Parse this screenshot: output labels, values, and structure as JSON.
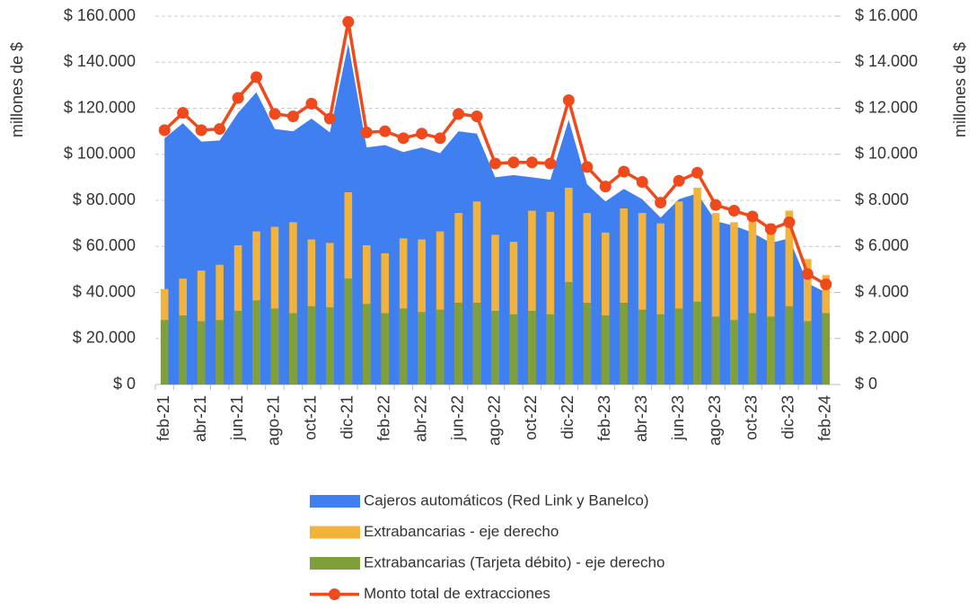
{
  "chart_data": {
    "type": "combo",
    "categories": [
      "feb-21",
      null,
      "abr-21",
      null,
      "jun-21",
      null,
      "ago-21",
      null,
      "oct-21",
      null,
      "dic-21",
      null,
      "feb-22",
      null,
      "abr-22",
      null,
      "jun-22",
      null,
      "ago-22",
      null,
      "oct-22",
      null,
      "dic-22",
      null,
      "feb-23",
      null,
      "abr-23",
      null,
      "jun-23",
      null,
      "ago-23",
      null,
      "oct-23",
      null,
      "dic-23",
      null,
      "feb-24"
    ],
    "y_label": "millones de $",
    "y2_label": "millones de $",
    "ylim": [
      0,
      160000
    ],
    "yticks": [
      {
        "value": 0,
        "label": "$ 0"
      },
      {
        "value": 20000,
        "label": "$ 20.000"
      },
      {
        "value": 40000,
        "label": "$ 40.000"
      },
      {
        "value": 60000,
        "label": "$ 60.000"
      },
      {
        "value": 80000,
        "label": "$ 80.000"
      },
      {
        "value": 100000,
        "label": "$ 100.000"
      },
      {
        "value": 120000,
        "label": "$ 120.000"
      },
      {
        "value": 140000,
        "label": "$ 140.000"
      },
      {
        "value": 160000,
        "label": "$ 160.000"
      }
    ],
    "y2lim": [
      0,
      16000
    ],
    "y2ticks": [
      {
        "value": 0,
        "label": "$ 0"
      },
      {
        "value": 2000,
        "label": "$ 2.000"
      },
      {
        "value": 4000,
        "label": "$ 4.000"
      },
      {
        "value": 6000,
        "label": "$ 6.000"
      },
      {
        "value": 8000,
        "label": "$ 8.000"
      },
      {
        "value": 10000,
        "label": "$ 10.000"
      },
      {
        "value": 12000,
        "label": "$ 12.000"
      },
      {
        "value": 14000,
        "label": "$ 14.000"
      },
      {
        "value": 16000,
        "label": "$ 16.000"
      }
    ],
    "grid": true,
    "legend": "bottom",
    "series": [
      {
        "name": "Cajeros automáticos (Red Link y Banelco)",
        "type": "area",
        "color": "#3f7ff0",
        "values": [
          107000,
          113500,
          105500,
          106000,
          118000,
          127000,
          111000,
          110000,
          115500,
          109500,
          148000,
          103000,
          104000,
          101000,
          103000,
          100500,
          110000,
          109000,
          90000,
          91000,
          90000,
          89000,
          115000,
          87000,
          79500,
          85000,
          80500,
          72500,
          80500,
          83000,
          71000,
          69000,
          66000,
          61500,
          63500,
          44000,
          40000
        ]
      },
      {
        "name": "Extrabancarias - eje derecho",
        "type": "bar",
        "axis": "y2",
        "color": "#f2b33d",
        "values": [
          4150,
          4600,
          4950,
          5200,
          6050,
          6650,
          6850,
          7050,
          6300,
          6150,
          8350,
          6050,
          5700,
          6350,
          6300,
          6650,
          7450,
          7950,
          6500,
          6200,
          7550,
          7500,
          8550,
          7450,
          6600,
          7650,
          7450,
          7000,
          7950,
          8550,
          7450,
          7050,
          7300,
          7000,
          7550,
          5450,
          4750
        ]
      },
      {
        "name": "Extrabancarias (Tarjeta débito) - eje derecho",
        "type": "bar",
        "axis": "y2",
        "color": "#7f9f3a",
        "values": [
          2800,
          3000,
          2750,
          2800,
          3200,
          3650,
          3300,
          3100,
          3400,
          3350,
          4600,
          3500,
          3100,
          3300,
          3150,
          3250,
          3550,
          3550,
          3200,
          3050,
          3200,
          3050,
          4450,
          3550,
          3000,
          3550,
          3250,
          3050,
          3300,
          3600,
          2950,
          2800,
          3100,
          2950,
          3400,
          2750,
          3100
        ]
      },
      {
        "name": "Monto total de extracciones",
        "type": "line",
        "color": "#f04a1c",
        "values": [
          110500,
          118000,
          110500,
          111000,
          124500,
          133500,
          117500,
          116500,
          122000,
          115500,
          157500,
          109500,
          110000,
          107000,
          109000,
          107000,
          117500,
          116500,
          96000,
          96500,
          96500,
          96000,
          123500,
          94500,
          86000,
          92500,
          88000,
          79000,
          88500,
          92000,
          78000,
          75500,
          73000,
          67500,
          70500,
          48000,
          43500
        ]
      }
    ]
  }
}
